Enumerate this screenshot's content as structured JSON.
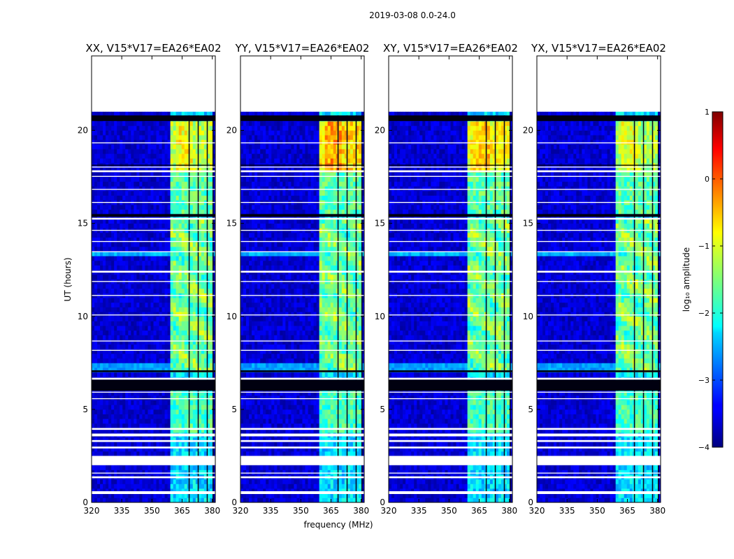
{
  "chart_data": {
    "type": "heatmap",
    "suptitle": "2019-03-08 0.0-24.0",
    "xlabel": "frequency (MHz)",
    "ylabel": "UT (hours)",
    "xlim": [
      320,
      381.5
    ],
    "ylim": [
      0,
      24
    ],
    "xticks": [
      320,
      335,
      350,
      365,
      380
    ],
    "xtick_labels": [
      "320",
      "335",
      "350",
      "365",
      "380"
    ],
    "yticks": [
      0,
      5,
      10,
      15,
      20
    ],
    "ytick_labels": [
      "0",
      "5",
      "10",
      "15",
      "20"
    ],
    "data_ut_range": [
      0,
      21
    ],
    "rfi_band_mhz": [
      359,
      380
    ],
    "panels": [
      {
        "title": "XX, V15*V17=EA26*EA02",
        "peak_log10_amplitude": -0.8
      },
      {
        "title": "YY, V15*V17=EA26*EA02",
        "peak_log10_amplitude": -0.3
      },
      {
        "title": "XY, V15*V17=EA26*EA02",
        "peak_log10_amplitude": -0.5
      },
      {
        "title": "YX, V15*V17=EA26*EA02",
        "peak_log10_amplitude": -0.9
      }
    ],
    "colorbar": {
      "label": "log₁₀ amplitude",
      "range": [
        -4,
        1
      ],
      "ticks": [
        1,
        0,
        -1,
        -2,
        -3,
        -4
      ],
      "tick_labels": [
        "1",
        "0",
        "−1",
        "−2",
        "−3",
        "−4"
      ],
      "colormap": "jet"
    }
  }
}
